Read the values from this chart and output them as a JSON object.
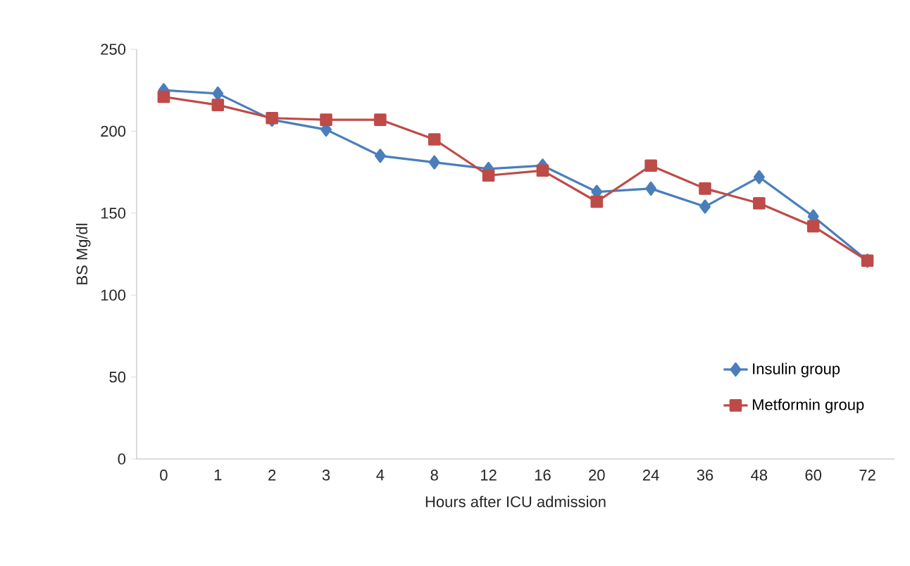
{
  "chart_data": {
    "type": "line",
    "xlabel": "Hours after ICU admission",
    "ylabel": "BS Mg/dl",
    "categories": [
      "0",
      "1",
      "2",
      "3",
      "4",
      "8",
      "12",
      "16",
      "20",
      "24",
      "36",
      "48",
      "60",
      "72"
    ],
    "series": [
      {
        "name": "Insulin group",
        "color": "#4a7ebb",
        "marker": "diamond",
        "values": [
          225,
          223,
          207,
          201,
          185,
          181,
          177,
          179,
          163,
          165,
          154,
          172,
          148,
          121
        ]
      },
      {
        "name": "Metformin group",
        "color": "#be4b48",
        "marker": "square",
        "values": [
          221,
          216,
          208,
          207,
          207,
          195,
          173,
          176,
          157,
          179,
          165,
          156,
          142,
          121
        ]
      }
    ],
    "ylim": [
      0,
      250
    ],
    "yticks": [
      0,
      50,
      100,
      150,
      200,
      250
    ],
    "grid": false,
    "legend": "bottom right",
    "line_style": "solid"
  }
}
